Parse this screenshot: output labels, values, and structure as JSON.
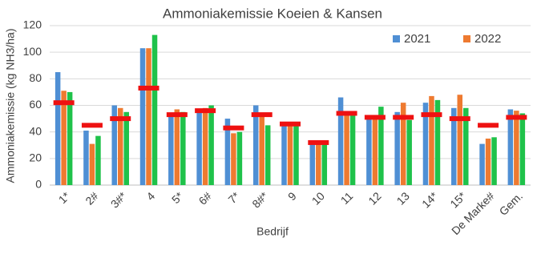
{
  "chart_data": {
    "type": "bar",
    "title": "Ammoniakemissie Koeien & Kansen",
    "x_label": "Bedrijf",
    "y_label": "Ammoniakemissie (kg NH3/ha)",
    "categories": [
      "1*",
      "2#",
      "3#*",
      "4",
      "5*",
      "6#",
      "7*",
      "8#*",
      "9",
      "10",
      "11",
      "12",
      "13",
      "14*",
      "15*",
      "De Marke#",
      "Gem."
    ],
    "series": [
      {
        "name": "2021",
        "color": "#4f8fd4",
        "values": [
          85,
          41,
          60,
          103,
          54,
          57,
          50,
          60,
          47,
          33,
          66,
          52,
          55,
          62,
          58,
          31,
          57
        ]
      },
      {
        "name": "2022",
        "color": "#ee7a30",
        "values": [
          71,
          31,
          58,
          103,
          57,
          58,
          39,
          53,
          46,
          32,
          54,
          52,
          62,
          67,
          68,
          35,
          56
        ]
      },
      {
        "color": "#1fc24a",
        "values": [
          70,
          37,
          55,
          113,
          55,
          60,
          40,
          45,
          45,
          31,
          53,
          59,
          49,
          64,
          58,
          36,
          54
        ]
      },
      {
        "color": "#ee1111",
        "marker": "dash",
        "values": [
          62,
          45,
          50,
          73,
          53,
          56,
          43,
          53,
          46,
          32,
          54,
          51,
          51,
          53,
          50,
          45,
          51
        ]
      }
    ],
    "ylim": [
      0,
      120
    ],
    "yticks": [
      0,
      20,
      40,
      60,
      80,
      100,
      120
    ],
    "grid": true
  }
}
